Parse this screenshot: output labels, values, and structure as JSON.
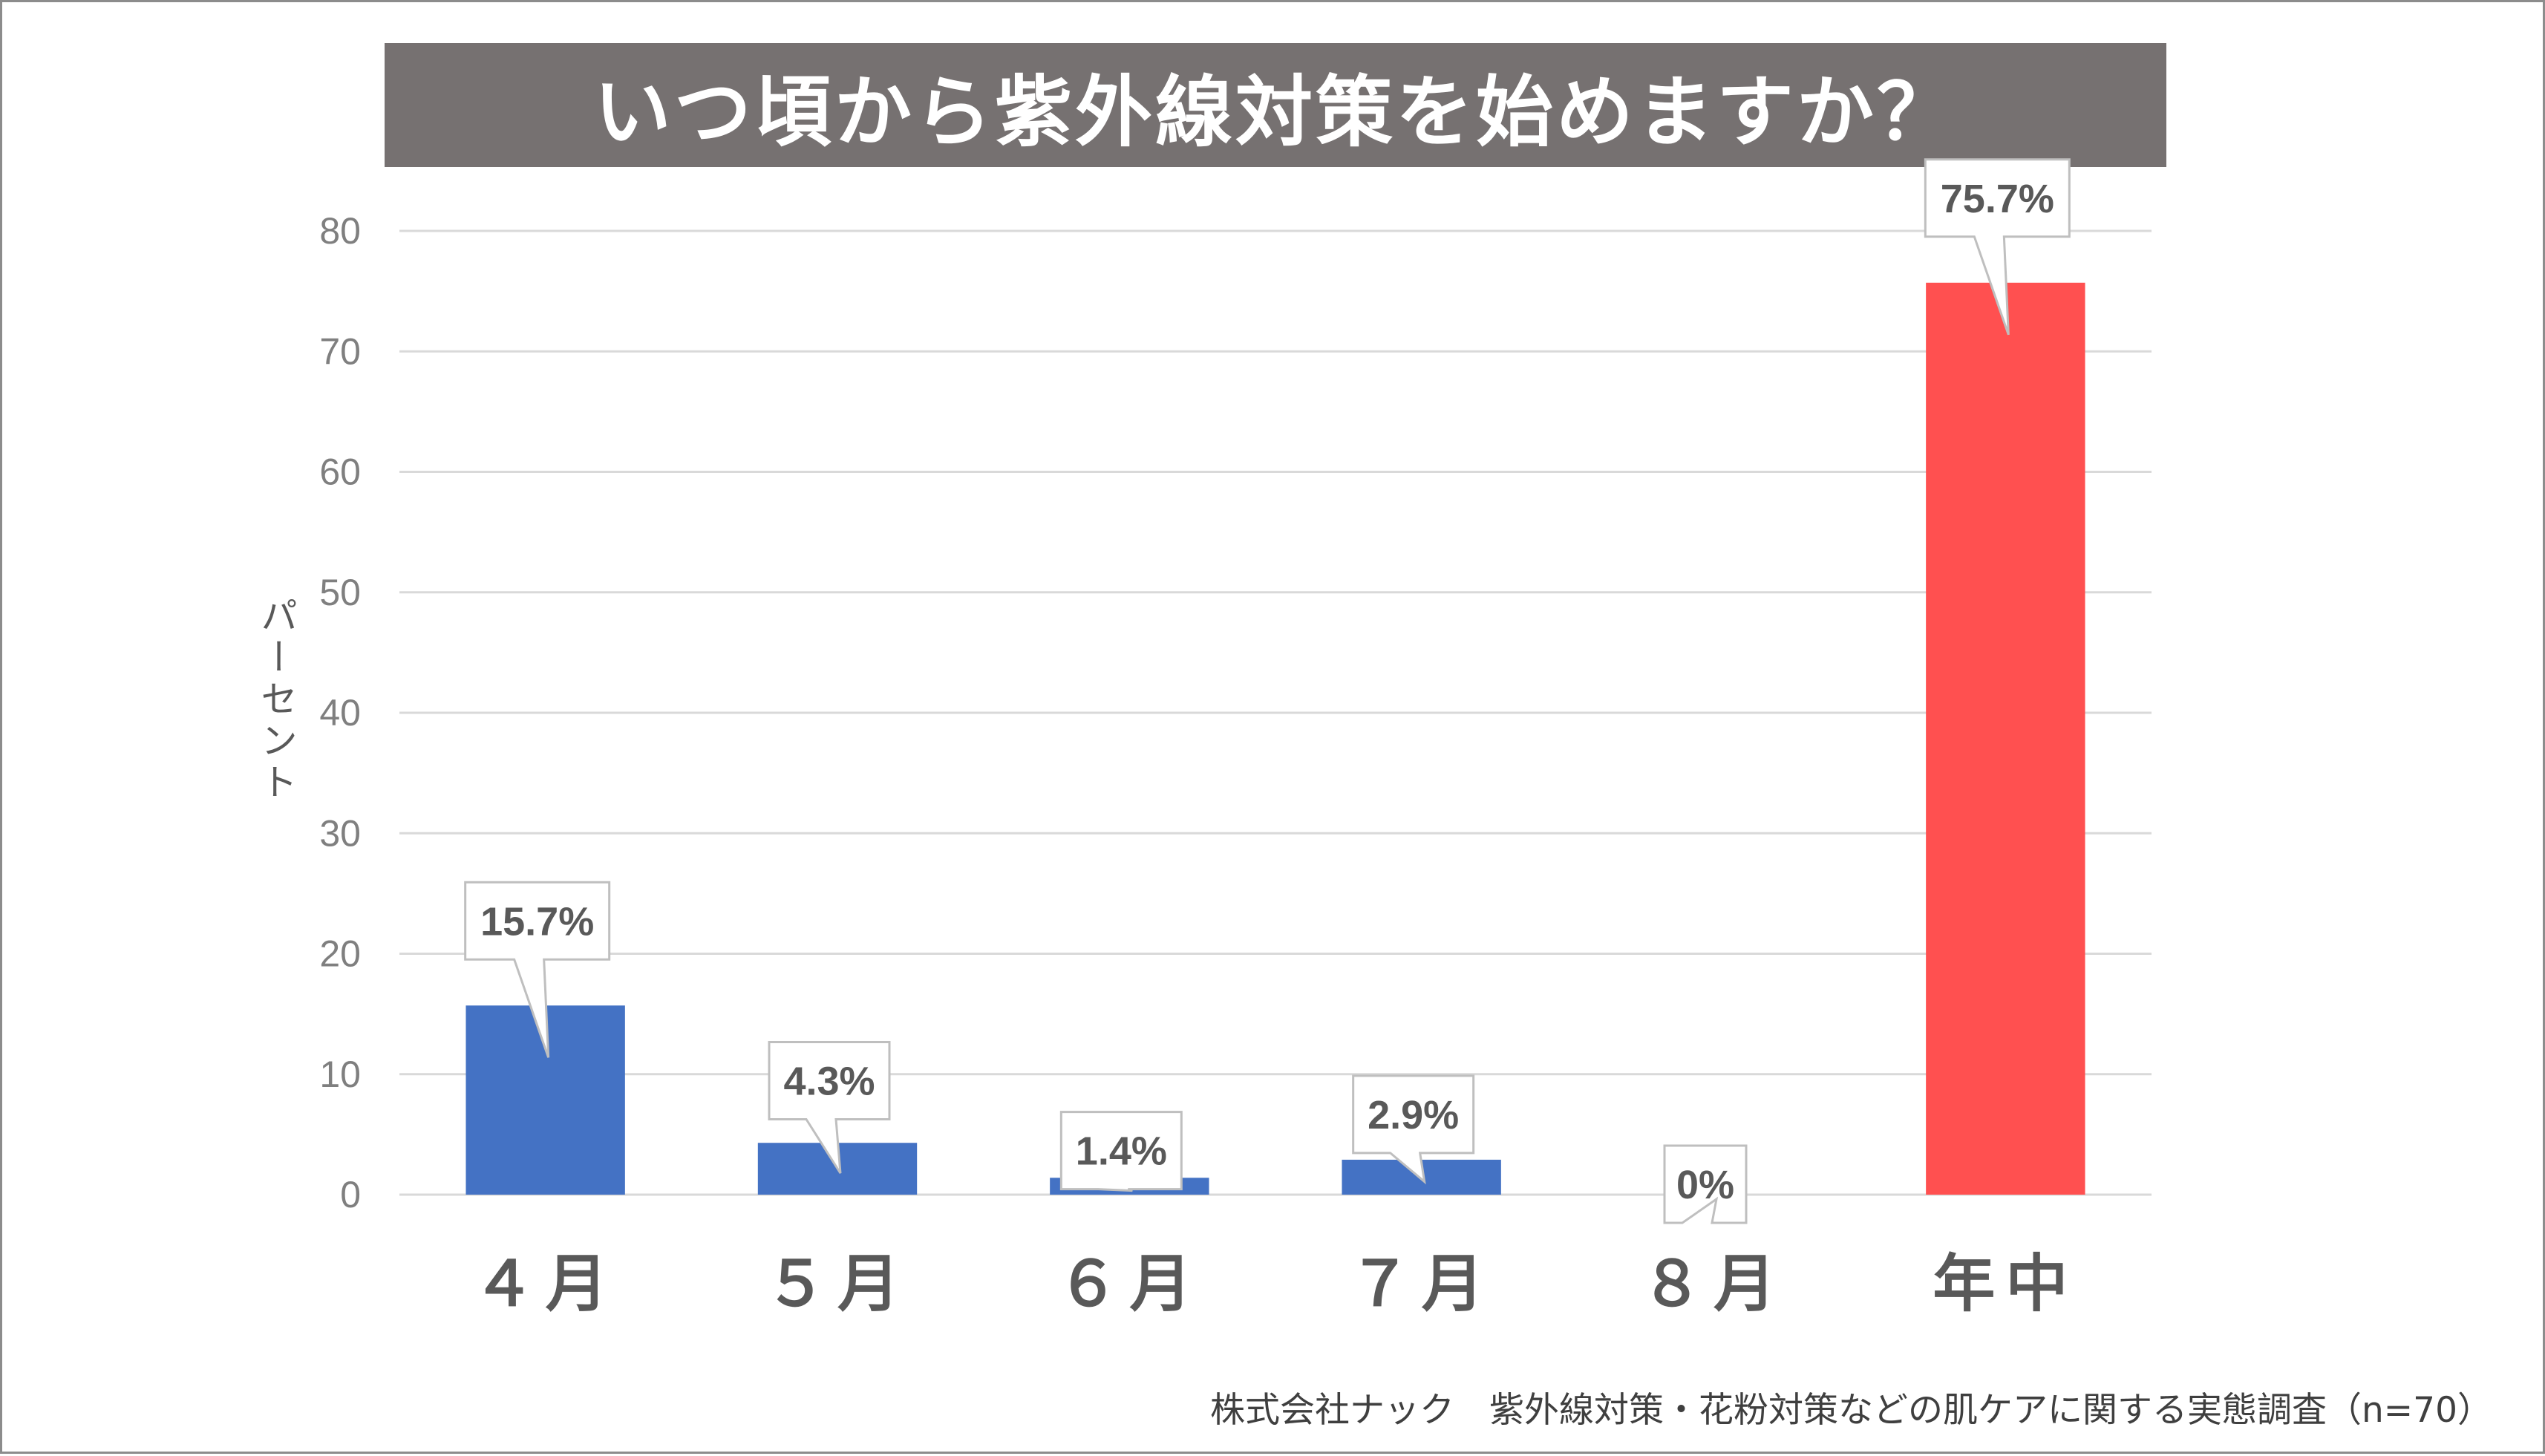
{
  "chart_data": {
    "type": "bar",
    "title": "いつ頃から紫外線対策を始めますか？",
    "xlabel": "",
    "ylabel": "パーセント",
    "categories": [
      "４月",
      "５月",
      "６月",
      "７月",
      "８月",
      "年中"
    ],
    "values": [
      15.7,
      4.3,
      1.4,
      2.9,
      0,
      75.7
    ],
    "data_labels": [
      "15.7%",
      "4.3%",
      "1.4%",
      "2.9%",
      "0%",
      "75.7%"
    ],
    "bar_colors": [
      "#4472c4",
      "#4472c4",
      "#4472c4",
      "#4472c4",
      "#4472c4",
      "#ff5050"
    ],
    "ylim": [
      0,
      80
    ],
    "yticks": [
      0,
      10,
      20,
      30,
      40,
      50,
      60,
      70,
      80
    ],
    "grid": true,
    "legend": "none"
  },
  "source_note": "株式会社ナック　紫外線対策・花粉対策などの肌ケアに関する実態調査（n=70）",
  "colors": {
    "title_background": "#767171",
    "title_text": "#ffffff",
    "gridline": "#d9d9d9",
    "text": "#595959"
  }
}
